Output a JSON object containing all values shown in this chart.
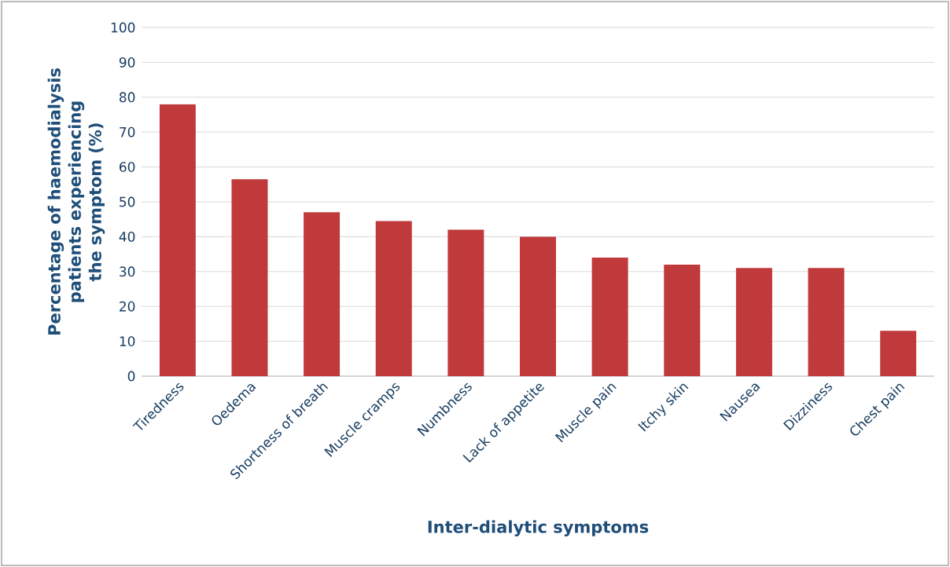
{
  "chart_data": {
    "type": "bar",
    "xlabel": "Inter-dialytic symptoms",
    "ylabel": "Percentage of haemodialysis patients experiencing the symptom (%)",
    "categories": [
      "Tiredness",
      "Oedema",
      "Shortness of breath",
      "Muscle cramps",
      "Numbness",
      "Lack of appetite",
      "Muscle pain",
      "Itchy skin",
      "Nausea",
      "Dizziness",
      "Chest pain"
    ],
    "values": [
      78,
      56.5,
      47,
      44.5,
      42,
      40,
      34,
      32,
      31,
      31,
      13
    ],
    "color": "#c0393b",
    "ylim": [
      0,
      100
    ],
    "yticks": [
      0,
      10,
      20,
      30,
      40,
      50,
      60,
      70,
      80,
      90,
      100
    ],
    "grid": "y"
  }
}
